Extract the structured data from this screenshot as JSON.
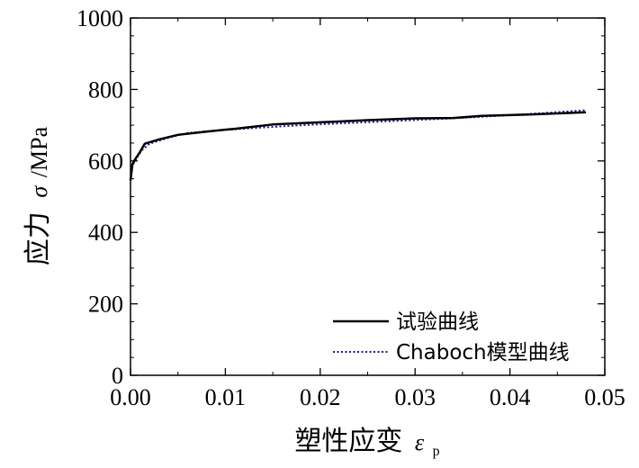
{
  "chart_data": {
    "type": "line",
    "xlabel": "塑性应变",
    "xlabel_symbol": "ε",
    "xlabel_subscript": "p",
    "ylabel": "应力",
    "ylabel_symbol": "σ",
    "ylabel_unit": "/MPa",
    "xlim": [
      0.0,
      0.05
    ],
    "ylim": [
      0,
      1000
    ],
    "x_ticks": [
      0.0,
      0.01,
      0.02,
      0.03,
      0.04,
      0.05
    ],
    "x_tick_labels": [
      "0.00",
      "0.01",
      "0.02",
      "0.03",
      "0.04",
      "0.05"
    ],
    "y_ticks": [
      0,
      200,
      400,
      600,
      800,
      1000
    ],
    "y_tick_labels": [
      "0",
      "200",
      "400",
      "600",
      "800",
      "1000"
    ],
    "legend_position": "bottom-right",
    "grid": false,
    "series": [
      {
        "name": "试验曲线",
        "color": "#000000",
        "style": "solid",
        "x": [
          0.0,
          0.0002,
          0.0005,
          0.001,
          0.0015,
          0.003,
          0.005,
          0.008,
          0.011,
          0.015,
          0.02,
          0.025,
          0.03,
          0.034,
          0.037,
          0.042,
          0.048
        ],
        "y": [
          545,
          590,
          605,
          625,
          648,
          660,
          673,
          682,
          690,
          702,
          708,
          714,
          719,
          720,
          726,
          730,
          736
        ]
      },
      {
        "name": "Chaboch模型曲线",
        "color": "#1a1aa0",
        "style": "dotted",
        "x": [
          0.0,
          0.0003,
          0.0007,
          0.0012,
          0.002,
          0.004,
          0.006,
          0.009,
          0.013,
          0.018,
          0.023,
          0.028,
          0.033,
          0.038,
          0.043,
          0.048
        ],
        "y": [
          570,
          592,
          610,
          630,
          648,
          665,
          678,
          685,
          692,
          700,
          706,
          712,
          718,
          725,
          733,
          742
        ]
      }
    ]
  }
}
